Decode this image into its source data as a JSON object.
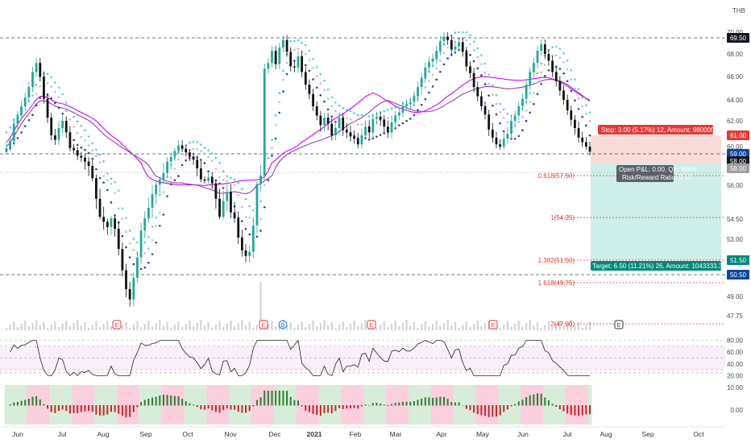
{
  "currency_label": "THB",
  "colors": {
    "up": "#26a69a",
    "down": "#111111",
    "stop_fill": "#fadbd8",
    "target_fill": "#cdeee9",
    "stop_tag": "#e53935",
    "target_tag": "#00897b",
    "blue_tag": "#0d47a1",
    "dark_tag": "#131722",
    "fib": "#e53935",
    "ema_fast": "#4dd0e1",
    "ema_mid": "#bdbdbd",
    "ema_slow": "#303f9f",
    "ma1": "#d500f9",
    "ma2": "#8e44ad"
  },
  "chart_data": {
    "type": "candlestick",
    "price_axis": {
      "ticks": [
        70.0,
        68.0,
        66.0,
        64.0,
        62.0,
        60.0,
        58.0,
        56.0,
        54.5,
        53.0,
        51.5,
        50.5,
        49.0,
        47.75
      ]
    },
    "x_axis": {
      "ticks": [
        "Jun",
        "Jul",
        "Aug",
        "Sep",
        "Oct",
        "Nov",
        "Dec",
        "2021",
        "Feb",
        "Mar",
        "Apr",
        "May",
        "Jun",
        "Jul",
        "Aug",
        "Sep",
        "Oct"
      ]
    },
    "closes": [
      59.8,
      60.5,
      61.8,
      62.5,
      63.4,
      64.2,
      65.1,
      66.4,
      67.2,
      66.0,
      64.1,
      62.3,
      61.0,
      60.6,
      61.5,
      62.0,
      61.2,
      59.8,
      59.5,
      58.8,
      58.6,
      58.2,
      57.9,
      57.1,
      55.4,
      54.6,
      54.0,
      53.7,
      54.2,
      53.6,
      52.3,
      50.8,
      49.4,
      48.8,
      50.2,
      51.7,
      53.5,
      54.4,
      55.0,
      55.6,
      56.1,
      56.9,
      57.6,
      58.2,
      58.7,
      59.4,
      60.1,
      59.7,
      59.2,
      58.7,
      58.4,
      57.8,
      56.9,
      56.7,
      57.2,
      56.3,
      55.4,
      54.6,
      55.3,
      55.7,
      54.8,
      54.4,
      53.1,
      52.2,
      51.8,
      52.1,
      53.8,
      56.2,
      57.5,
      66.7,
      67.2,
      68.3,
      67.1,
      68.6,
      69.3,
      68.2,
      66.9,
      66.8,
      67.8,
      66.4,
      65.3,
      64.5,
      63.4,
      62.5,
      61.7,
      62.3,
      61.8,
      61.0,
      61.5,
      62.3,
      61.4,
      61.2,
      60.9,
      60.7,
      60.2,
      61.0,
      61.6,
      61.2,
      62.2,
      62.4,
      62.1,
      61.6,
      61.2,
      61.9,
      62.5,
      62.8,
      63.4,
      63.6,
      63.8,
      64.3,
      65.1,
      65.9,
      66.8,
      67.3,
      67.6,
      68.3,
      69.2,
      69.6,
      69.3,
      68.4,
      68.7,
      69.1,
      68.2,
      66.9,
      66.3,
      65.1,
      64.3,
      63.4,
      62.6,
      61.4,
      60.8,
      60.2,
      60.0,
      60.7,
      61.1,
      62.0,
      62.5,
      63.4,
      64.1,
      65.3,
      66.4,
      67.2,
      68.3,
      68.9,
      68.0,
      67.4,
      66.4,
      65.6,
      64.8,
      64.0,
      63.0,
      62.1,
      61.5,
      60.8,
      60.4,
      60.0,
      59.3
    ],
    "reference_levels": {
      "resistance": 69.5,
      "upper_support": 59.0,
      "lower_support": 50.5
    },
    "position": {
      "entry": 58.0,
      "stop": 61.0,
      "target": 51.5,
      "stop_label": "Stop: 3.00 (5.17%) 12, Amount: 980000",
      "target_label": "Target: 6.50 (11.21%) 26, Amount: 1043333.33",
      "pnl_label": "Open P&L: 0.00, Qty: 6666",
      "rr_label": "Risk/Reward Ratio: 2.17"
    },
    "price_tags": [
      {
        "value": 69.5,
        "label": "69.50",
        "kind": "dark"
      },
      {
        "value": 61.0,
        "label": "61.00",
        "kind": "stop"
      },
      {
        "value": 59.0,
        "label": "59.00",
        "kind": "blue"
      },
      {
        "value": 58.25,
        "label": "58.00",
        "kind": "dark"
      },
      {
        "value": 57.8,
        "label": "58.00",
        "kind": "gray"
      },
      {
        "value": 51.5,
        "label": "51.50",
        "kind": "target"
      },
      {
        "value": 50.5,
        "label": "50.50",
        "kind": "blue"
      }
    ],
    "fib_levels": [
      {
        "label": "0.618(57.50)",
        "value": 57.5
      },
      {
        "label": "1(54.25)",
        "value": 54.25
      },
      {
        "label": "1.382(51.50)",
        "value": 51.5
      },
      {
        "label": "1.618(49.75)",
        "value": 49.75
      },
      {
        "label": "2(47.00)",
        "value": 47.0
      }
    ],
    "rsi": {
      "ticks": [
        80.0,
        60.0,
        40.0,
        20.0
      ],
      "levels": [
        70,
        50,
        30
      ]
    },
    "oscillator": {
      "ticks": [
        "10.00",
        "0.00"
      ]
    },
    "events": [
      "E",
      "E",
      "D",
      "E",
      "E",
      "E"
    ]
  }
}
